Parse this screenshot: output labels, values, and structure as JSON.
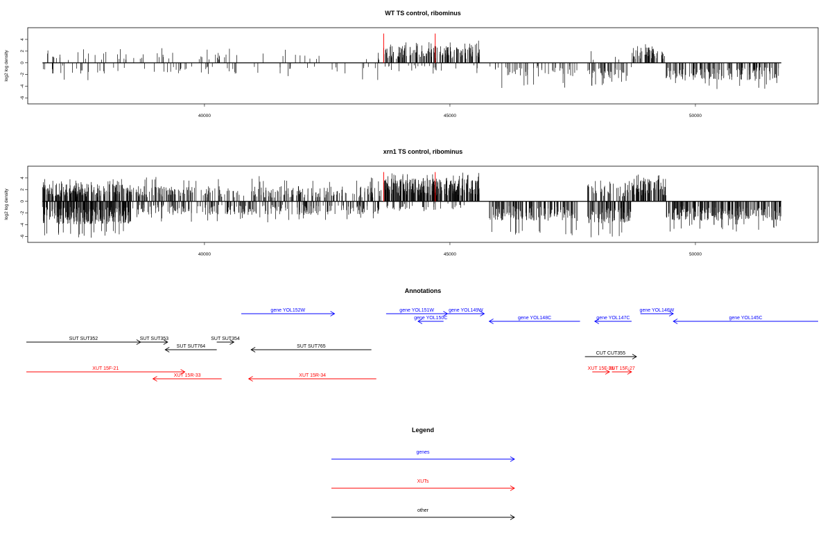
{
  "chart_data": [
    {
      "type": "bar",
      "title": "WT TS control, ribominus",
      "ylabel": "log2 log density",
      "xlim": [
        36400,
        52500
      ],
      "ylim": [
        -7,
        6
      ],
      "xticks": [
        40000,
        45000,
        50000
      ],
      "yticks": [
        4,
        2,
        0,
        -2,
        -4,
        -6
      ],
      "markers": {
        "color": "#ff0000",
        "x": [
          43650,
          44700
        ],
        "height": 5
      },
      "segments": [
        {
          "from": 36700,
          "to": 40300,
          "sign": "both",
          "density": 0.012,
          "mean": 1.3,
          "max": 2.6,
          "neg_mean": 1.3,
          "neg_max": 3.0,
          "neg_density": 0.012
        },
        {
          "from": 40300,
          "to": 43600,
          "sign": "both",
          "density": 0.006,
          "mean": 1.2,
          "max": 2.9,
          "neg_mean": 1.3,
          "neg_max": 3.0,
          "neg_density": 0.008
        },
        {
          "from": 43650,
          "to": 45600,
          "sign": "pos",
          "density": 0.08,
          "mean": 2.0,
          "max": 3.8
        },
        {
          "from": 43650,
          "to": 45600,
          "sign": "neg",
          "density": 0.012,
          "mean": 1.2,
          "max": 2.3
        },
        {
          "from": 45800,
          "to": 47600,
          "sign": "neg",
          "density": 0.028,
          "mean": 1.6,
          "max": 4.5
        },
        {
          "from": 47800,
          "to": 48700,
          "sign": "neg",
          "density": 0.05,
          "mean": 1.9,
          "max": 4.0
        },
        {
          "from": 47800,
          "to": 48700,
          "sign": "pos",
          "density": 0.004,
          "mean": 1.5,
          "max": 2.0
        },
        {
          "from": 48700,
          "to": 49400,
          "sign": "pos",
          "density": 0.07,
          "mean": 1.8,
          "max": 3.2
        },
        {
          "from": 49400,
          "to": 51750,
          "sign": "neg",
          "density": 0.06,
          "mean": 2.1,
          "max": 4.5
        }
      ]
    },
    {
      "type": "bar",
      "title": "xrn1 TS control, ribominus",
      "ylabel": "log2 log density",
      "xlim": [
        36400,
        52500
      ],
      "ylim": [
        -7,
        6
      ],
      "xticks": [
        40000,
        45000,
        50000
      ],
      "yticks": [
        4,
        2,
        0,
        -2,
        -4,
        -6
      ],
      "markers": {
        "color": "#ff0000",
        "x": [
          43650,
          44700
        ],
        "height": 5
      },
      "segments": [
        {
          "from": 36700,
          "to": 38500,
          "sign": "both",
          "density": 0.12,
          "mean": 2.0,
          "max": 3.8,
          "neg_mean": 2.7,
          "neg_max": 6.5,
          "neg_density": 0.14
        },
        {
          "from": 38500,
          "to": 43600,
          "sign": "both",
          "density": 0.05,
          "mean": 1.8,
          "max": 4.4,
          "neg_mean": 1.6,
          "neg_max": 3.6,
          "neg_density": 0.05
        },
        {
          "from": 43650,
          "to": 45600,
          "sign": "pos",
          "density": 0.15,
          "mean": 2.7,
          "max": 4.9
        },
        {
          "from": 43650,
          "to": 45600,
          "sign": "neg",
          "density": 0.02,
          "mean": 1.0,
          "max": 2.0
        },
        {
          "from": 45800,
          "to": 47600,
          "sign": "neg",
          "density": 0.08,
          "mean": 2.3,
          "max": 5.8
        },
        {
          "from": 47800,
          "to": 48700,
          "sign": "neg",
          "density": 0.1,
          "mean": 2.6,
          "max": 6.2
        },
        {
          "from": 47800,
          "to": 48700,
          "sign": "pos",
          "density": 0.05,
          "mean": 2.2,
          "max": 3.6
        },
        {
          "from": 48700,
          "to": 49400,
          "sign": "pos",
          "density": 0.12,
          "mean": 2.7,
          "max": 4.8
        },
        {
          "from": 49400,
          "to": 51750,
          "sign": "neg",
          "density": 0.1,
          "mean": 2.3,
          "max": 5.2
        }
      ]
    }
  ],
  "annotations": {
    "title": "Annotations",
    "colors": {
      "gene": "#0000ff",
      "xut": "#ff0000",
      "other": "#000000"
    },
    "items": [
      {
        "label": "gene YOL152W",
        "kind": "gene",
        "start": 40750,
        "end": 42650,
        "strand": "+",
        "row": 0
      },
      {
        "label": "gene YOL151W",
        "kind": "gene",
        "start": 43700,
        "end": 44950,
        "strand": "+",
        "row": 0
      },
      {
        "label": "gene YOL150C",
        "kind": "gene",
        "start": 44350,
        "end": 44870,
        "strand": "-",
        "row": 1
      },
      {
        "label": "gene YOL149W",
        "kind": "gene",
        "start": 44950,
        "end": 45700,
        "strand": "+",
        "row": 0
      },
      {
        "label": "gene YOL148C",
        "kind": "gene",
        "start": 45800,
        "end": 47650,
        "strand": "-",
        "row": 1
      },
      {
        "label": "gene YOL147C",
        "kind": "gene",
        "start": 47950,
        "end": 48700,
        "strand": "-",
        "row": 1
      },
      {
        "label": "gene YOL146W",
        "kind": "gene",
        "start": 48880,
        "end": 49550,
        "strand": "+",
        "row": 0
      },
      {
        "label": "gene YOL145C",
        "kind": "gene",
        "start": 49550,
        "end": 52500,
        "strand": "-",
        "row": 1
      },
      {
        "label": "SUT SUT352",
        "kind": "other",
        "start": 36100,
        "end": 38700,
        "strand": "+",
        "row": 3
      },
      {
        "label": "SUT SUT353",
        "kind": "other",
        "start": 38700,
        "end": 39250,
        "strand": "+",
        "row": 3
      },
      {
        "label": "SUT SUT764",
        "kind": "other",
        "start": 39200,
        "end": 40250,
        "strand": "-",
        "row": 4
      },
      {
        "label": "SUT SUT354",
        "kind": "other",
        "start": 40250,
        "end": 40600,
        "strand": "+",
        "row": 3
      },
      {
        "label": "SUT SUT765",
        "kind": "other",
        "start": 40950,
        "end": 43400,
        "strand": "-",
        "row": 4
      },
      {
        "label": "CUT CUT355",
        "kind": "other",
        "start": 47750,
        "end": 48800,
        "strand": "+",
        "row": 5
      },
      {
        "label": "XUT 15F-21",
        "kind": "xut",
        "start": 36100,
        "end": 39600,
        "strand": "+",
        "row": 6
      },
      {
        "label": "XUT 15R-33",
        "kind": "xut",
        "start": 38950,
        "end": 40350,
        "strand": "-",
        "row": 7
      },
      {
        "label": "XUT 15R-34",
        "kind": "xut",
        "start": 40900,
        "end": 43500,
        "strand": "-",
        "row": 7
      },
      {
        "label": "XUT 15F-26",
        "kind": "xut",
        "start": 47900,
        "end": 48250,
        "strand": "+",
        "row": 6
      },
      {
        "label": "XUT 15F-27",
        "kind": "xut",
        "start": 48300,
        "end": 48700,
        "strand": "+",
        "row": 6
      }
    ]
  },
  "legend": {
    "title": "Legend",
    "items": [
      {
        "label": "genes",
        "color": "#0000ff"
      },
      {
        "label": "XUTs",
        "color": "#ff0000"
      },
      {
        "label": "other",
        "color": "#000000"
      }
    ]
  }
}
